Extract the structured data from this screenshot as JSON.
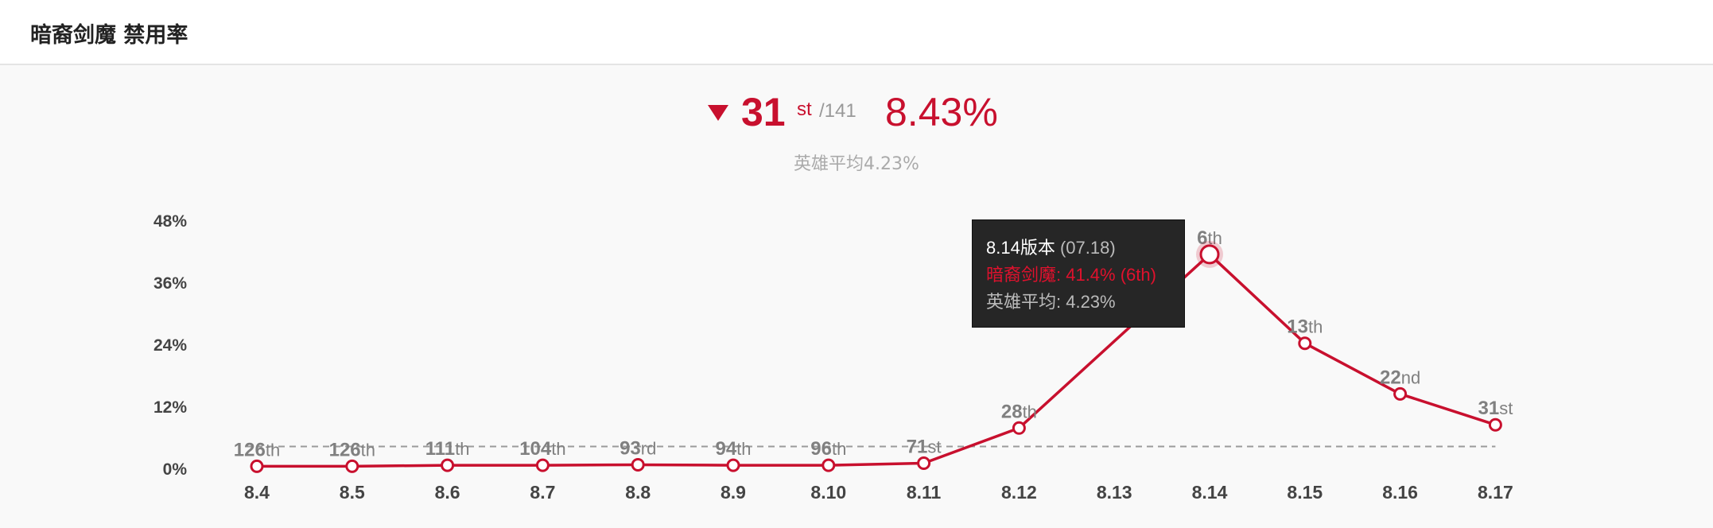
{
  "header": {
    "title": "暗裔剑魔 禁用率"
  },
  "summary": {
    "rank": "31",
    "rank_suffix": "st",
    "rank_total": "/141",
    "rate": "8.43%",
    "hero_avg": "英雄平均4.23%"
  },
  "tooltip": {
    "version": "8.14版本",
    "date": "(07.18)",
    "hero_line": "暗裔剑魔: 41.4% (6th)",
    "avg_line": "英雄平均: 4.23%"
  },
  "chart_data": {
    "type": "line",
    "title": "",
    "xlabel": "",
    "ylabel": "",
    "categories": [
      "8.4",
      "8.5",
      "8.6",
      "8.7",
      "8.8",
      "8.9",
      "8.10",
      "8.11",
      "8.12",
      "8.13",
      "8.14",
      "8.15",
      "8.16",
      "8.17"
    ],
    "yticks": [
      "0%",
      "12%",
      "24%",
      "36%",
      "48%"
    ],
    "ylim": [
      0,
      48
    ],
    "grid": false,
    "series": [
      {
        "color": "#c8102e",
        "values": [
          0.4,
          0.4,
          0.6,
          0.6,
          0.7,
          0.6,
          0.6,
          1.0,
          7.8,
          null,
          41.4,
          24.2,
          14.4,
          8.43
        ],
        "labels": [
          {
            "num": "126",
            "suf": "th"
          },
          {
            "num": "126",
            "suf": "th"
          },
          {
            "num": "111",
            "suf": "th"
          },
          {
            "num": "104",
            "suf": "th"
          },
          {
            "num": "93",
            "suf": "rd"
          },
          {
            "num": "94",
            "suf": "th"
          },
          {
            "num": "96",
            "suf": "th"
          },
          {
            "num": "71",
            "suf": "st"
          },
          {
            "num": "28",
            "suf": "th"
          },
          null,
          {
            "num": "6",
            "suf": "th"
          },
          {
            "num": "13",
            "suf": "th"
          },
          {
            "num": "22",
            "suf": "nd"
          },
          {
            "num": "31",
            "suf": "st"
          }
        ],
        "highlight_index": 10
      }
    ],
    "reference_line": {
      "value": 4.23,
      "style": "dashed",
      "color": "#9a9a9a"
    }
  }
}
